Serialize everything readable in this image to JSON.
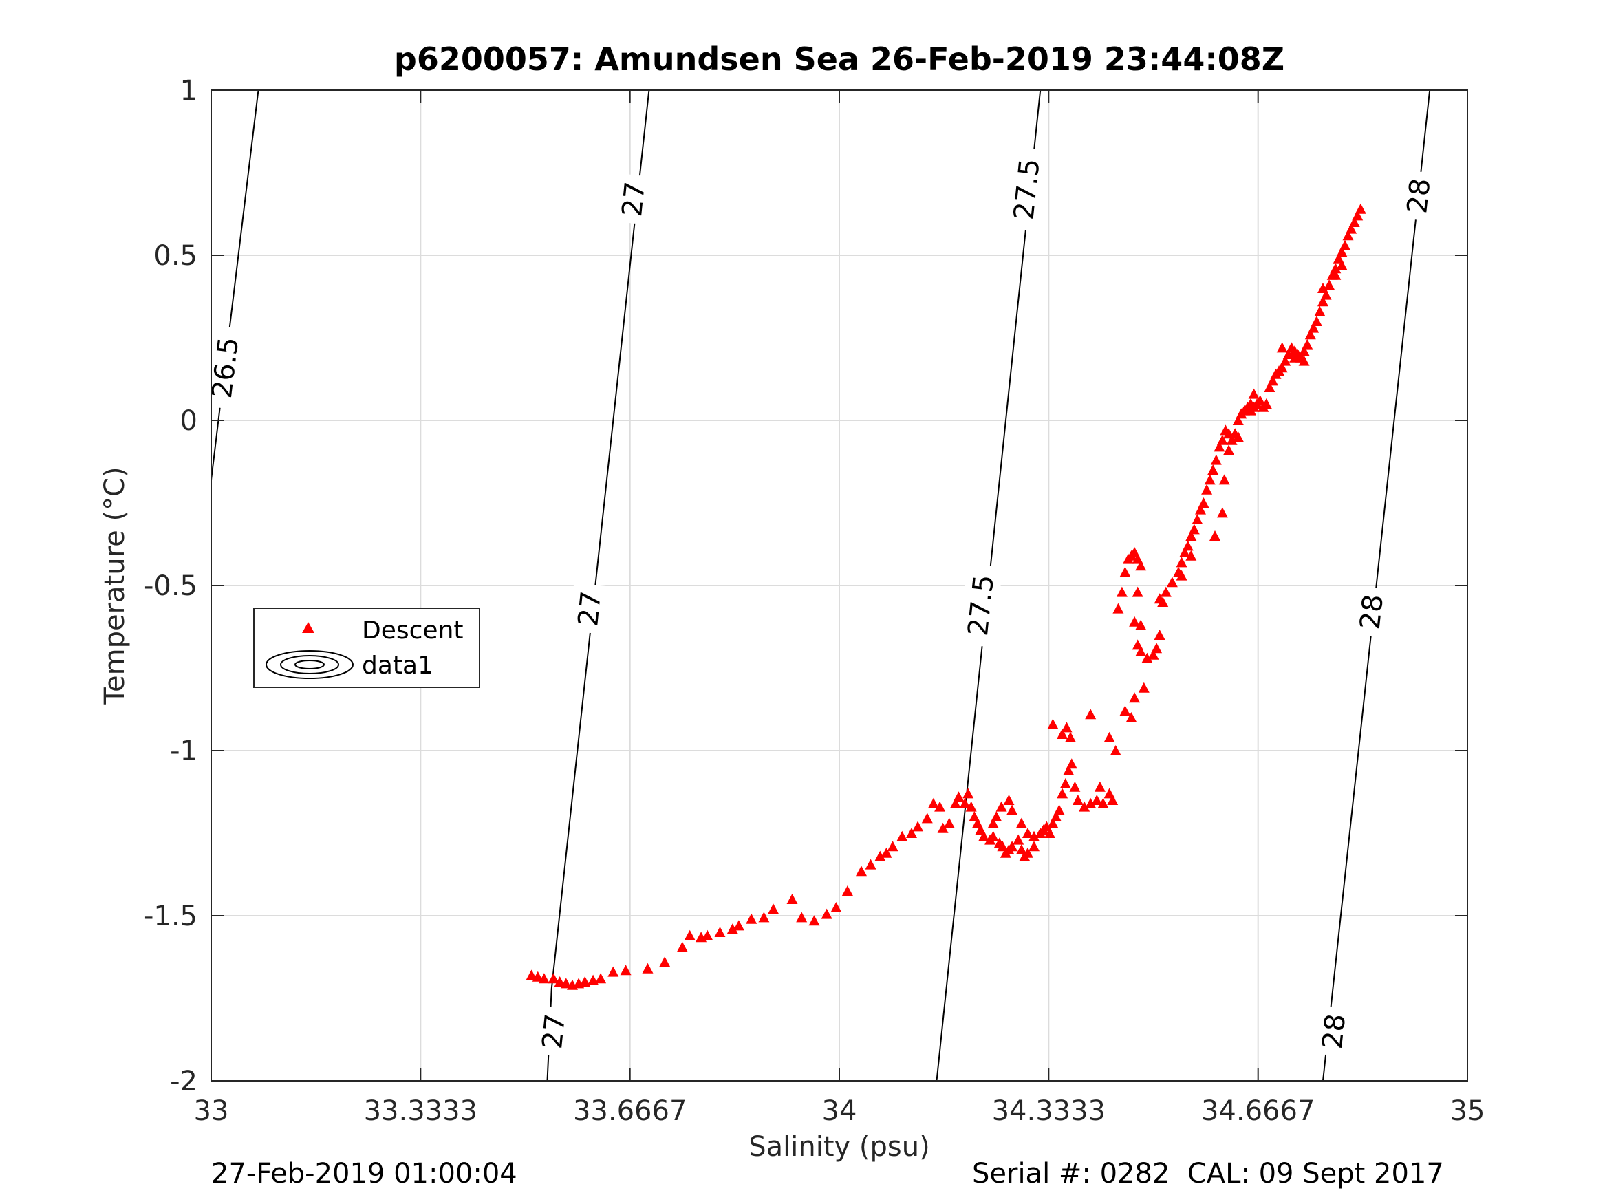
{
  "chart_data": {
    "type": "scatter",
    "title": "p6200057: Amundsen Sea 26-Feb-2019 23:44:08Z",
    "xlabel": "Salinity (psu)",
    "ylabel": "Temperature (°C)",
    "xlim": [
      33,
      35
    ],
    "ylim": [
      -2,
      1
    ],
    "xticks": [
      33,
      33.3333,
      33.6667,
      34,
      34.3333,
      34.6667,
      35
    ],
    "xtick_labels": [
      "33",
      "33.3333",
      "33.6667",
      "34",
      "34.3333",
      "34.6667",
      "35"
    ],
    "yticks": [
      -2,
      -1.5,
      -1,
      -0.5,
      0,
      0.5,
      1
    ],
    "ytick_labels": [
      "-2",
      "-1.5",
      "-1",
      "-0.5",
      "0",
      "0.5",
      "1"
    ],
    "grid": true,
    "legend": {
      "placement": "left-middle",
      "entries": [
        {
          "label": "Descent",
          "marker": "triangle",
          "color": "#ff0000"
        },
        {
          "label": "data1",
          "marker": "contour",
          "color": "#000000"
        }
      ]
    },
    "contours": [
      {
        "level": "26.5",
        "points": [
          [
            33.075,
            1.0
          ],
          [
            33.0,
            -0.18
          ]
        ],
        "labels": [
          [
            33.022,
            0.16
          ]
        ]
      },
      {
        "level": "27",
        "points": [
          [
            33.697,
            1.0
          ],
          [
            33.542,
            -1.72
          ],
          [
            33.535,
            -2.0
          ]
        ],
        "labels": [
          [
            33.672,
            0.67
          ],
          [
            33.602,
            -0.57
          ],
          [
            33.545,
            -1.85
          ]
        ]
      },
      {
        "level": "27.5",
        "points": [
          [
            34.32,
            1.0
          ],
          [
            34.155,
            -2.0
          ]
        ],
        "labels": [
          [
            34.298,
            0.7
          ],
          [
            34.225,
            -0.56
          ]
        ]
      },
      {
        "level": "28",
        "points": [
          [
            34.94,
            1.0
          ],
          [
            34.77,
            -2.0
          ]
        ],
        "labels": [
          [
            34.922,
            0.68
          ],
          [
            34.847,
            -0.58
          ],
          [
            34.787,
            -1.85
          ]
        ]
      }
    ],
    "series": [
      {
        "name": "Descent",
        "color": "#ff0000",
        "marker": "triangle",
        "points": [
          [
            33.51,
            -1.68
          ],
          [
            33.52,
            -1.685
          ],
          [
            33.53,
            -1.69
          ],
          [
            33.545,
            -1.69
          ],
          [
            33.555,
            -1.7
          ],
          [
            33.565,
            -1.705
          ],
          [
            33.575,
            -1.71
          ],
          [
            33.585,
            -1.705
          ],
          [
            33.595,
            -1.7
          ],
          [
            33.608,
            -1.695
          ],
          [
            33.62,
            -1.69
          ],
          [
            33.64,
            -1.67
          ],
          [
            33.66,
            -1.665
          ],
          [
            33.695,
            -1.66
          ],
          [
            33.722,
            -1.64
          ],
          [
            33.75,
            -1.595
          ],
          [
            33.762,
            -1.56
          ],
          [
            33.78,
            -1.565
          ],
          [
            33.79,
            -1.56
          ],
          [
            33.81,
            -1.55
          ],
          [
            33.83,
            -1.54
          ],
          [
            33.84,
            -1.53
          ],
          [
            33.86,
            -1.51
          ],
          [
            33.88,
            -1.505
          ],
          [
            33.895,
            -1.48
          ],
          [
            33.925,
            -1.45
          ],
          [
            33.94,
            -1.505
          ],
          [
            33.96,
            -1.515
          ],
          [
            33.98,
            -1.495
          ],
          [
            33.995,
            -1.475
          ],
          [
            34.013,
            -1.425
          ],
          [
            34.035,
            -1.365
          ],
          [
            34.05,
            -1.345
          ],
          [
            34.065,
            -1.32
          ],
          [
            34.075,
            -1.31
          ],
          [
            34.085,
            -1.29
          ],
          [
            34.1,
            -1.26
          ],
          [
            34.115,
            -1.25
          ],
          [
            34.125,
            -1.23
          ],
          [
            34.14,
            -1.205
          ],
          [
            34.15,
            -1.16
          ],
          [
            34.16,
            -1.17
          ],
          [
            34.165,
            -1.235
          ],
          [
            34.175,
            -1.22
          ],
          [
            34.185,
            -1.16
          ],
          [
            34.19,
            -1.14
          ],
          [
            34.2,
            -1.16
          ],
          [
            34.205,
            -1.13
          ],
          [
            34.21,
            -1.17
          ],
          [
            34.215,
            -1.2
          ],
          [
            34.22,
            -1.22
          ],
          [
            34.225,
            -1.24
          ],
          [
            34.23,
            -1.26
          ],
          [
            34.24,
            -1.27
          ],
          [
            34.245,
            -1.26
          ],
          [
            34.255,
            -1.28
          ],
          [
            34.26,
            -1.29
          ],
          [
            34.265,
            -1.31
          ],
          [
            34.27,
            -1.3
          ],
          [
            34.275,
            -1.29
          ],
          [
            34.285,
            -1.27
          ],
          [
            34.29,
            -1.3
          ],
          [
            34.295,
            -1.32
          ],
          [
            34.3,
            -1.31
          ],
          [
            34.31,
            -1.29
          ],
          [
            34.3,
            -1.25
          ],
          [
            34.29,
            -1.22
          ],
          [
            34.275,
            -1.18
          ],
          [
            34.27,
            -1.15
          ],
          [
            34.258,
            -1.17
          ],
          [
            34.25,
            -1.2
          ],
          [
            34.245,
            -1.22
          ],
          [
            34.31,
            -1.26
          ],
          [
            34.32,
            -1.25
          ],
          [
            34.325,
            -1.24
          ],
          [
            34.33,
            -1.23
          ],
          [
            34.335,
            -1.25
          ],
          [
            34.34,
            -1.22
          ],
          [
            34.345,
            -1.2
          ],
          [
            34.35,
            -1.18
          ],
          [
            34.355,
            -1.13
          ],
          [
            34.36,
            -1.1
          ],
          [
            34.365,
            -1.06
          ],
          [
            34.37,
            -1.04
          ],
          [
            34.368,
            -0.96
          ],
          [
            34.362,
            -0.93
          ],
          [
            34.355,
            -0.95
          ],
          [
            34.34,
            -0.92
          ],
          [
            34.375,
            -1.11
          ],
          [
            34.38,
            -1.15
          ],
          [
            34.39,
            -1.17
          ],
          [
            34.4,
            -1.16
          ],
          [
            34.41,
            -1.15
          ],
          [
            34.42,
            -1.16
          ],
          [
            34.43,
            -1.13
          ],
          [
            34.435,
            -1.15
          ],
          [
            34.415,
            -1.11
          ],
          [
            34.4,
            -0.89
          ],
          [
            34.43,
            -0.96
          ],
          [
            34.44,
            -1.0
          ],
          [
            34.444,
            -0.57
          ],
          [
            34.45,
            -0.52
          ],
          [
            34.455,
            -0.46
          ],
          [
            34.46,
            -0.42
          ],
          [
            34.465,
            -0.41
          ],
          [
            34.47,
            -0.4
          ],
          [
            34.475,
            -0.42
          ],
          [
            34.48,
            -0.44
          ],
          [
            34.475,
            -0.52
          ],
          [
            34.47,
            -0.61
          ],
          [
            34.48,
            -0.62
          ],
          [
            34.475,
            -0.68
          ],
          [
            34.48,
            -0.7
          ],
          [
            34.49,
            -0.72
          ],
          [
            34.5,
            -0.71
          ],
          [
            34.505,
            -0.69
          ],
          [
            34.51,
            -0.65
          ],
          [
            34.485,
            -0.81
          ],
          [
            34.47,
            -0.84
          ],
          [
            34.465,
            -0.9
          ],
          [
            34.455,
            -0.88
          ],
          [
            34.51,
            -0.54
          ],
          [
            34.515,
            -0.55
          ],
          [
            34.52,
            -0.52
          ],
          [
            34.53,
            -0.49
          ],
          [
            34.54,
            -0.46
          ],
          [
            34.545,
            -0.43
          ],
          [
            34.55,
            -0.4
          ],
          [
            34.555,
            -0.38
          ],
          [
            34.56,
            -0.35
          ],
          [
            34.565,
            -0.33
          ],
          [
            34.57,
            -0.3
          ],
          [
            34.575,
            -0.27
          ],
          [
            34.58,
            -0.25
          ],
          [
            34.585,
            -0.21
          ],
          [
            34.59,
            -0.18
          ],
          [
            34.595,
            -0.15
          ],
          [
            34.6,
            -0.12
          ],
          [
            34.605,
            -0.08
          ],
          [
            34.61,
            -0.06
          ],
          [
            34.615,
            -0.03
          ],
          [
            34.62,
            -0.04
          ],
          [
            34.625,
            -0.06
          ],
          [
            34.63,
            -0.04
          ],
          [
            34.635,
            0.0
          ],
          [
            34.64,
            0.02
          ],
          [
            34.645,
            0.03
          ],
          [
            34.65,
            0.04
          ],
          [
            34.655,
            0.05
          ],
          [
            34.66,
            0.04
          ],
          [
            34.665,
            0.05
          ],
          [
            34.67,
            0.06
          ],
          [
            34.675,
            0.04
          ],
          [
            34.68,
            0.05
          ],
          [
            34.685,
            0.1
          ],
          [
            34.69,
            0.12
          ],
          [
            34.695,
            0.14
          ],
          [
            34.7,
            0.15
          ],
          [
            34.705,
            0.16
          ],
          [
            34.71,
            0.18
          ],
          [
            34.715,
            0.2
          ],
          [
            34.72,
            0.22
          ],
          [
            34.725,
            0.21
          ],
          [
            34.73,
            0.2
          ],
          [
            34.735,
            0.19
          ],
          [
            34.74,
            0.21
          ],
          [
            34.745,
            0.23
          ],
          [
            34.75,
            0.26
          ],
          [
            34.755,
            0.28
          ],
          [
            34.76,
            0.3
          ],
          [
            34.765,
            0.33
          ],
          [
            34.77,
            0.36
          ],
          [
            34.775,
            0.38
          ],
          [
            34.78,
            0.41
          ],
          [
            34.785,
            0.44
          ],
          [
            34.79,
            0.46
          ],
          [
            34.795,
            0.49
          ],
          [
            34.8,
            0.51
          ],
          [
            34.805,
            0.53
          ],
          [
            34.81,
            0.56
          ],
          [
            34.815,
            0.58
          ],
          [
            34.82,
            0.6
          ],
          [
            34.825,
            0.62
          ],
          [
            34.83,
            0.64
          ],
          [
            34.8,
            0.47
          ],
          [
            34.79,
            0.44
          ],
          [
            34.77,
            0.4
          ],
          [
            34.74,
            0.18
          ],
          [
            34.725,
            0.19
          ],
          [
            34.705,
            0.22
          ],
          [
            34.66,
            0.08
          ],
          [
            34.655,
            0.03
          ],
          [
            34.635,
            -0.05
          ],
          [
            34.62,
            -0.09
          ],
          [
            34.613,
            -0.18
          ],
          [
            34.61,
            -0.28
          ],
          [
            34.598,
            -0.35
          ],
          [
            34.56,
            -0.41
          ],
          [
            34.545,
            -0.47
          ]
        ]
      }
    ]
  },
  "footer": {
    "left": "27-Feb-2019 01:00:04",
    "right": "Serial #: 0282  CAL: 09 Sept 2017"
  },
  "colors": {
    "data": "#ff0000",
    "grid": "#dcdcdc",
    "axis": "#262626",
    "contour": "#000000"
  }
}
